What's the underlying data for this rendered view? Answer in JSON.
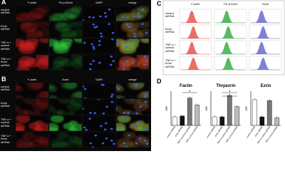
{
  "panels": {
    "A": {
      "label": "A",
      "columns": [
        "F-actin",
        "Thr-p-Ezrin",
        "DAPI",
        "merge"
      ],
      "channels": [
        "red",
        "green",
        "blue",
        "merge"
      ],
      "rows": [
        "control shRNA",
        "Ezrin shRNA",
        "TNF-α + control shRNA",
        "TNF-α + Ezrin shRNA"
      ]
    },
    "B": {
      "label": "B",
      "columns": [
        "F-actin",
        "Ezrin",
        "DAPI",
        "merge"
      ],
      "channels": [
        "red",
        "green",
        "blue",
        "merge"
      ],
      "rows": [
        "control shRNA",
        "Ezrin shRNA",
        "TNF-α + control shRNA",
        "TNF-α + Ezrin shRNA"
      ]
    },
    "C": {
      "label": "C",
      "columns": [
        "F-actin",
        "Thr-p-Ezrin",
        "Ezrin"
      ],
      "colors": [
        "#e8544e",
        "#3cb04a",
        "#6a6ad0"
      ],
      "rows": [
        "control shRNA",
        "Ezrin shRNA",
        "TNF-α + control shRNA",
        "TNF-α + Ezrin shRNA"
      ]
    },
    "D": {
      "label": "D",
      "categories": [
        "control shRNA",
        "Ezrin shRNA",
        "TNF-α+control shRNA",
        "TNF-α+Ezrin shRNA"
      ],
      "colors": [
        "#ffffff",
        "#111111",
        "#777777",
        "#bbbbbb"
      ],
      "charts": [
        {
          "type": "bar",
          "title": "Factin",
          "y_label": "MFI",
          "ylim": [
            0,
            4
          ],
          "values": [
            1.0,
            1.1,
            3.2,
            2.4
          ],
          "annotations": [
            "#"
          ]
        },
        {
          "type": "bar",
          "title": "Thrpezrin",
          "y_label": "MFI",
          "ylim": [
            0,
            4
          ],
          "values": [
            1.0,
            1.0,
            3.5,
            2.2
          ],
          "annotations": [
            "#",
            "*"
          ]
        },
        {
          "type": "bar",
          "title": "Ezrin",
          "y_label": "MFI",
          "ylim": [
            0,
            4
          ],
          "values": [
            3.0,
            1.0,
            2.9,
            0.9
          ],
          "annotations": []
        }
      ]
    }
  }
}
